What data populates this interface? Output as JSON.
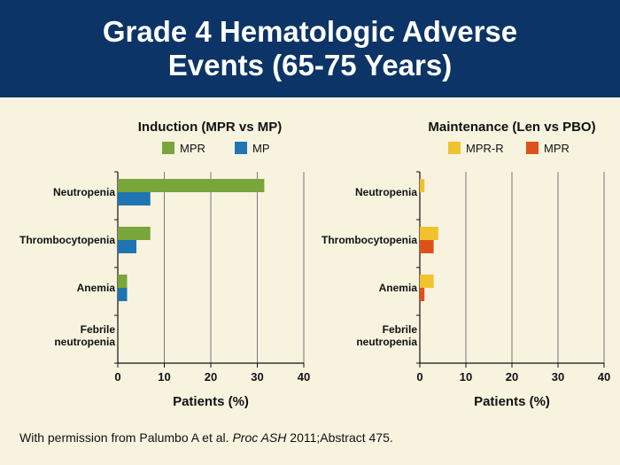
{
  "title": "Grade 4 Hematologic Adverse Events (65-75 Years)",
  "footnote": {
    "prefix": "With permission from Palumbo A et al.",
    "journal": "Proc ASH",
    "suffix": "2011;Abstract 475."
  },
  "colors": {
    "header_bg": "#0c3466",
    "page_bg": "#f7f3df",
    "mpr_induction": "#7aa53a",
    "mp": "#1f74b3",
    "mpr_r": "#f0c22c",
    "mpr_maintenance": "#dc5219"
  },
  "chart_data": [
    {
      "type": "bar",
      "orientation": "horizontal",
      "title": "Induction (MPR vs MP)",
      "xlabel": "Patients (%)",
      "ylabel": "",
      "categories": [
        "Neutropenia",
        "Thrombocytopenia",
        "Anemia",
        "Febrile\nneutropenia"
      ],
      "series": [
        {
          "name": "MPR",
          "color": "#7aa53a",
          "values": [
            31.5,
            7,
            2,
            0
          ]
        },
        {
          "name": "MP",
          "color": "#1f74b3",
          "values": [
            7,
            4,
            2,
            0
          ]
        }
      ],
      "xlim": [
        0,
        40
      ],
      "xticks": [
        "0",
        "10",
        "20",
        "30",
        "40"
      ],
      "grid": true,
      "legend": "top"
    },
    {
      "type": "bar",
      "orientation": "horizontal",
      "title": "Maintenance (Len vs PBO)",
      "xlabel": "Patients (%)",
      "ylabel": "",
      "categories": [
        "Neutropenia",
        "Thrombocytopenia",
        "Anemia",
        "Febrile\nneutropenia"
      ],
      "series": [
        {
          "name": "MPR-R",
          "color": "#f0c22c",
          "values": [
            1,
            4,
            3,
            0
          ]
        },
        {
          "name": "MPR",
          "color": "#dc5219",
          "values": [
            0,
            3,
            1,
            0
          ]
        }
      ],
      "xlim": [
        0,
        40
      ],
      "xticks": [
        "0",
        "10",
        "20",
        "30",
        "40"
      ],
      "grid": true,
      "legend": "top"
    }
  ]
}
